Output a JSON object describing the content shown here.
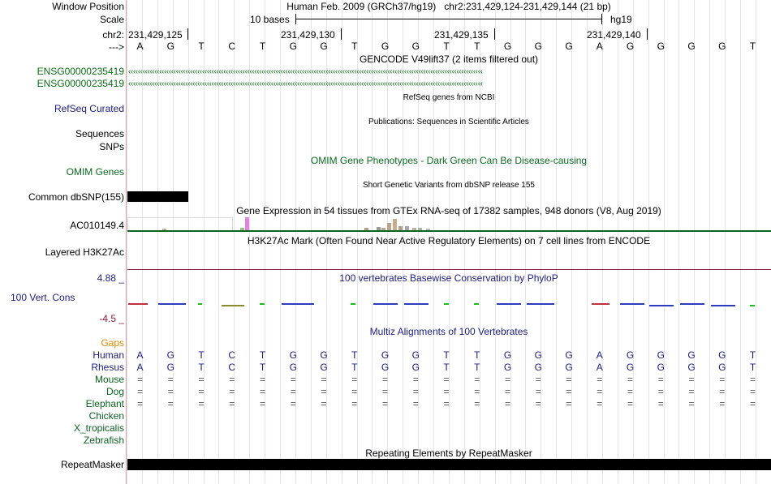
{
  "header": {
    "window_position_label": "Window Position",
    "window_position_value": "Human Feb. 2009 (GRCh37/hg19)   chr2:231,429,124-231,429,144 (21 bp)",
    "scale_label": "Scale",
    "scale_value": "10 bases",
    "scale_assembly": "hg19",
    "chrom_label": "chr2:",
    "strand_label": "--->",
    "coordinates": [
      "231,429,125",
      "231,429,130",
      "231,429,135",
      "231,429,140"
    ]
  },
  "sequence": [
    "A",
    "G",
    "T",
    "C",
    "T",
    "G",
    "G",
    "T",
    "G",
    "G",
    "T",
    "T",
    "G",
    "G",
    "G",
    "A",
    "G",
    "G",
    "G",
    "G",
    "T"
  ],
  "tracks": {
    "gencode": {
      "title": "GENCODE V49lift37 (2 items filtered out)",
      "items": [
        "ENSG00000235419",
        "ENSG00000235419"
      ],
      "arrow_glyphs": "‹‹‹‹‹‹‹‹‹‹‹‹‹‹‹‹‹‹‹‹‹‹‹‹‹‹‹‹‹‹‹‹‹‹‹‹‹‹‹‹‹‹‹‹‹‹‹‹‹‹‹‹‹‹‹‹‹‹‹‹‹‹‹‹‹‹‹‹‹‹‹‹‹‹‹‹‹‹‹‹‹‹‹‹‹‹‹‹‹‹‹‹‹‹‹‹‹‹‹‹‹‹‹‹‹‹‹‹‹‹‹‹‹‹‹‹‹‹‹‹‹‹‹‹‹‹‹‹‹‹‹‹‹‹‹‹‹‹‹‹‹‹‹‹‹‹‹‹‹"
    },
    "refseq": {
      "label": "RefSeq Curated",
      "title": "RefSeq genes from NCBI"
    },
    "publications": {
      "title": "Publications: Sequences in Scientific Articles"
    },
    "sequences": {
      "label": "Sequences"
    },
    "snps": {
      "label": "SNPs"
    },
    "omim": {
      "label": "OMIM Genes",
      "title": "OMIM Gene Phenotypes - Dark Green Can Be Disease-causing"
    },
    "dbsnp": {
      "label": "Common dbSNP(155)",
      "title": "Short Genetic Variants from dbSNP release 155"
    },
    "gtex": {
      "label": "AC010149.4",
      "title": "Gene Expression in 54 tissues from GTEx RNA-seq of 17382 samples, 948 donors (V8, Aug 2019)"
    },
    "h3k27ac": {
      "label": "Layered H3K27Ac",
      "title": "H3K27Ac Mark (Often Found Near Active Regulatory Elements) on 7 cell lines from ENCODE"
    },
    "phylop": {
      "label": "100 Vert. Cons",
      "max": "4.88 _",
      "min": "-4.5 _",
      "title": "100 vertebrates Basewise Conservation by PhyloP"
    },
    "multiz": {
      "title": "Multiz Alignments of 100 Vertebrates",
      "gaps_label": "Gaps",
      "species": [
        {
          "name": "Human",
          "row": [
            "A",
            "G",
            "T",
            "C",
            "T",
            "G",
            "G",
            "T",
            "G",
            "G",
            "T",
            "T",
            "G",
            "G",
            "G",
            "A",
            "G",
            "G",
            "G",
            "G",
            "T"
          ]
        },
        {
          "name": "Rhesus",
          "row": [
            "A",
            "G",
            "T",
            "C",
            "T",
            "G",
            "G",
            "T",
            "G",
            "G",
            "T",
            "T",
            "G",
            "G",
            "G",
            "A",
            "G",
            "G",
            "G",
            "G",
            "T"
          ]
        },
        {
          "name": "Mouse",
          "row": [
            "=",
            "=",
            "=",
            "=",
            "=",
            "=",
            "=",
            "=",
            "=",
            "=",
            "=",
            "=",
            "=",
            "=",
            "=",
            "=",
            "=",
            "=",
            "=",
            "=",
            "="
          ]
        },
        {
          "name": "Dog",
          "row": [
            "=",
            "=",
            "=",
            "=",
            "=",
            "=",
            "=",
            "=",
            "=",
            "=",
            "=",
            "=",
            "=",
            "=",
            "=",
            "=",
            "=",
            "=",
            "=",
            "=",
            "="
          ]
        },
        {
          "name": "Elephant",
          "row": [
            "=",
            "=",
            "=",
            "=",
            "=",
            "=",
            "=",
            "=",
            "=",
            "=",
            "=",
            "=",
            "=",
            "=",
            "=",
            "=",
            "=",
            "=",
            "=",
            "=",
            "="
          ]
        },
        {
          "name": "Chicken",
          "row": []
        },
        {
          "name": "X_tropicalis",
          "row": []
        },
        {
          "name": "Zebrafish",
          "row": []
        }
      ]
    },
    "repeatmasker": {
      "label": "RepeatMasker",
      "title": "Repeating Elements by RepeatMasker"
    }
  },
  "colors": {
    "gencode_green": "#0a6e14",
    "navy": "#1c1c80",
    "omim_green": "#0b6b20",
    "gaps_orange": "#e08a00",
    "species_green": "#0b6420",
    "h3k27_line": "#8b1a3a",
    "gtex_line": "#0b6420"
  }
}
